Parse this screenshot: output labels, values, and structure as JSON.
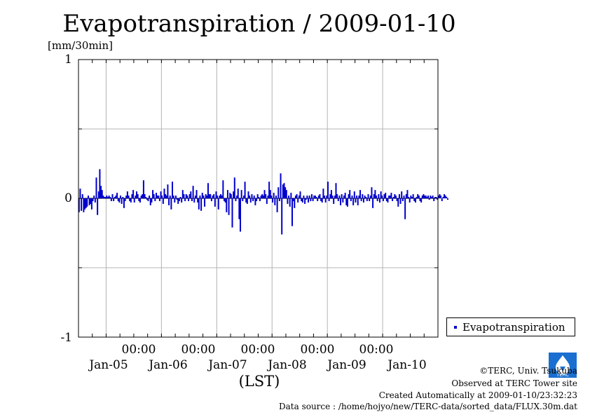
{
  "title": "Evapotranspiration / 2009-01-10",
  "unit_label": "[mm/30min]",
  "y_ticks": [
    "1",
    "0",
    "-1"
  ],
  "x_time_labels": [
    "00:00",
    "00:00",
    "00:00",
    "00:00",
    "00:00"
  ],
  "x_date_labels": [
    "Jan-05",
    "Jan-06",
    "Jan-07",
    "Jan-08",
    "Jan-09",
    "Jan-10"
  ],
  "x_axis_label": "(LST)",
  "legend": {
    "label": "Evapotranspiration",
    "color": "#0000cc"
  },
  "credits": {
    "copyright": "©TERC, Univ. Tsukuba",
    "observed": "Observed at TERC Tower site",
    "created": "Created Automatically at 2009-01-10/23:32:23",
    "source": "Data source : /home/hojyo/new/TERC-data/sorted_data/FLUX.30m.dat"
  },
  "logo_text": "TERC",
  "chart_data": {
    "type": "bar",
    "title": "Evapotranspiration / 2009-01-10",
    "ylabel": "[mm/30min]",
    "xlabel": "(LST)",
    "ylim": [
      -1,
      1
    ],
    "xlim": [
      "2009-01-04 12:00",
      "2009-01-11 00:00"
    ],
    "grid": true,
    "legend_position": "right-bottom",
    "series": [
      {
        "name": "Evapotranspiration",
        "color": "#0000cc",
        "x_start": "2009-01-04 12:00",
        "interval_minutes": 30,
        "values": [
          -0.1,
          0.07,
          -0.09,
          0.03,
          -0.1,
          -0.08,
          -0.07,
          -0.06,
          0.02,
          -0.05,
          -0.04,
          -0.08,
          -0.02,
          0.02,
          -0.03,
          0.15,
          -0.12,
          0.05,
          0.21,
          0.09,
          0.06,
          0.02,
          0.01,
          0.01,
          0.02,
          0.01,
          0.02,
          0.01,
          -0.02,
          0.03,
          -0.02,
          0.01,
          0.02,
          0.04,
          -0.02,
          -0.03,
          0.02,
          -0.04,
          0.01,
          -0.07,
          -0.02,
          0.02,
          0.05,
          0.02,
          -0.02,
          -0.03,
          0.03,
          0.06,
          -0.03,
          0.02,
          0.05,
          0.03,
          -0.02,
          -0.03,
          0.02,
          0.03,
          0.13,
          0.03,
          0.01,
          -0.01,
          -0.02,
          0.02,
          -0.05,
          -0.03,
          0.06,
          0.03,
          -0.02,
          0.04,
          0.02,
          0.02,
          -0.02,
          0.05,
          0.02,
          -0.04,
          0.07,
          0.03,
          0.02,
          0.1,
          -0.05,
          0.02,
          -0.08,
          0.12,
          0.02,
          -0.03,
          0.02,
          -0.01,
          -0.04,
          -0.02,
          0.01,
          -0.03,
          0.06,
          0.03,
          -0.02,
          0.03,
          0.02,
          -0.02,
          0.03,
          0.05,
          -0.02,
          0.09,
          -0.03,
          0.02,
          0.06,
          -0.03,
          -0.08,
          0.02,
          -0.09,
          0.04,
          0.02,
          -0.06,
          0.03,
          0.02,
          0.11,
          0.03,
          0.03,
          -0.02,
          0.02,
          0.03,
          -0.06,
          0.05,
          0.02,
          -0.08,
          0.02,
          0.03,
          0.02,
          0.13,
          -0.02,
          -0.03,
          -0.1,
          0.06,
          -0.12,
          0.04,
          0.03,
          -0.21,
          0.05,
          0.15,
          -0.02,
          0.02,
          0.07,
          -0.15,
          -0.24,
          0.06,
          -0.02,
          0.02,
          0.12,
          -0.03,
          -0.04,
          0.05,
          0.02,
          -0.03,
          0.03,
          -0.02,
          0.02,
          -0.05,
          -0.02,
          0.03,
          0.01,
          -0.02,
          0.02,
          0.03,
          0.02,
          0.06,
          0.03,
          -0.04,
          0.02,
          0.12,
          0.06,
          0.02,
          -0.03,
          0.04,
          -0.05,
          0.02,
          -0.1,
          0.08,
          -0.02,
          0.18,
          -0.26,
          0.1,
          0.11,
          0.08,
          0.06,
          -0.04,
          0.02,
          -0.06,
          0.04,
          -0.2,
          -0.02,
          -0.07,
          0.02,
          0.03,
          -0.03,
          0.02,
          0.05,
          -0.02,
          -0.03,
          0.02,
          -0.04,
          -0.01,
          0.02,
          -0.03,
          0.02,
          -0.02,
          0.03,
          -0.02,
          0.02,
          0.02,
          0.01,
          -0.02,
          0.02,
          0.03,
          -0.02,
          -0.03,
          0.07,
          0.02,
          -0.03,
          0.02,
          0.12,
          -0.02,
          0.03,
          0.06,
          0.02,
          -0.04,
          0.02,
          0.11,
          0.03,
          -0.02,
          0.02,
          -0.05,
          0.03,
          -0.03,
          0.02,
          0.04,
          -0.05,
          -0.06,
          0.03,
          0.06,
          -0.02,
          0.02,
          -0.05,
          0.05,
          -0.03,
          0.02,
          -0.05,
          0.02,
          0.06,
          -0.02,
          0.03,
          -0.03,
          0.02,
          0.01,
          -0.02,
          0.03,
          -0.02,
          0.02,
          0.08,
          -0.07,
          0.03,
          0.06,
          0.02,
          -0.02,
          0.03,
          -0.03,
          0.05,
          0.02,
          -0.02,
          0.03,
          0.04,
          -0.02,
          -0.03,
          0.02,
          0.02,
          0.04,
          -0.02,
          0.01,
          0.03,
          0.02,
          -0.02,
          -0.06,
          0.03,
          -0.04,
          0.05,
          -0.02,
          0.02,
          -0.15,
          0.03,
          0.06,
          0.01,
          -0.03,
          0.02,
          0.01,
          0.03,
          -0.02,
          -0.03,
          0.01,
          0.03,
          0.02,
          -0.02,
          -0.03,
          0.02,
          0.03,
          0.02,
          0.02,
          0.01,
          0.02,
          -0.01,
          0.02,
          0.01,
          0.02,
          -0.02,
          0.01,
          0.01,
          -0.01,
          0.02,
          0.03,
          0.02,
          -0.02,
          0.01,
          0.03,
          0.02,
          0.01,
          -0.01
        ]
      }
    ]
  }
}
